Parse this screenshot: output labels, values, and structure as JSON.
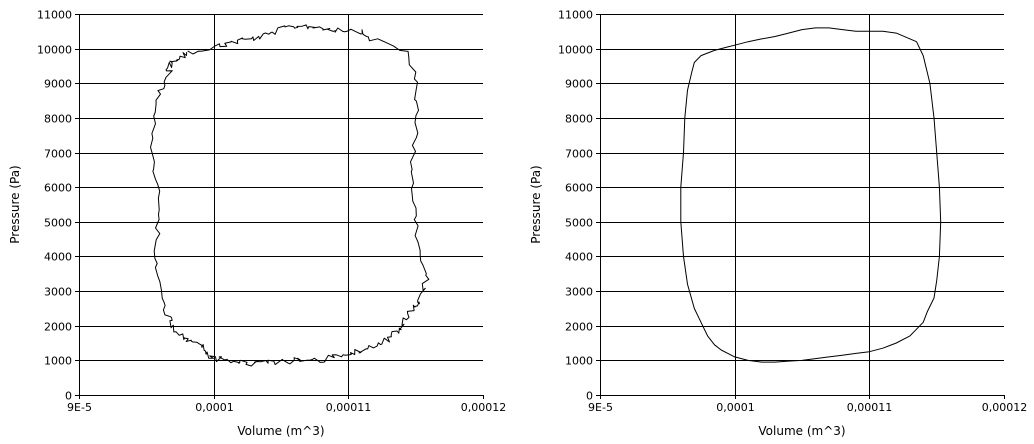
{
  "chart_data": [
    {
      "type": "line",
      "title": "",
      "xlabel": "Volume (m^3)",
      "ylabel": "Pressure (Pa)",
      "xlim": [
        9e-05,
        0.00012
      ],
      "ylim": [
        0,
        11000
      ],
      "x_ticks": [
        9e-05,
        0.0001,
        0.00011,
        0.00012
      ],
      "x_tick_labels": [
        "9E-5",
        "0,0001",
        "0,00011",
        "0,00012"
      ],
      "y_ticks": [
        0,
        1000,
        2000,
        3000,
        4000,
        5000,
        6000,
        7000,
        8000,
        9000,
        10000,
        11000
      ],
      "y_tick_labels": [
        "0",
        "1000",
        "2000",
        "3000",
        "4000",
        "5000",
        "6000",
        "7000",
        "8000",
        "9000",
        "10000",
        "11000"
      ],
      "grid": true,
      "legend": "none",
      "noisy": true,
      "series": [
        {
          "line_color": "#000000",
          "x": [
            9.8e-05,
            0.0001,
            0.000101,
            0.000102,
            0.000103,
            0.000104,
            0.000105,
            0.000106,
            0.000107,
            0.000108,
            0.000109,
            0.00011,
            0.000111,
            0.0001115,
            0.0001145,
            0.000115,
            0.0001152,
            0.0001148,
            0.0001148,
            0.000115,
            0.0001153,
            0.0001158,
            0.0001153,
            0.000115,
            0.0001145,
            0.000114,
            0.0001135,
            0.000113,
            0.000112,
            0.000111,
            0.00011,
            0.000109,
            0.000108,
            0.000107,
            0.000106,
            0.000105,
            0.000104,
            0.000103,
            0.000102,
            0.000101,
            0.0001,
            9.95e-05,
            9.9e-05,
            9.8e-05,
            9.75e-05,
            9.7e-05,
            9.65e-05,
            9.6e-05,
            9.55e-05,
            9.6e-05,
            9.58e-05,
            9.55e-05,
            9.55e-05,
            9.6e-05,
            9.68e-05,
            9.65e-05,
            9.7e-05,
            9.75e-05,
            9.8e-05
          ],
          "y": [
            9900,
            10050,
            10150,
            10250,
            10300,
            10400,
            10550,
            10650,
            10650,
            10600,
            10550,
            10550,
            10500,
            10300,
            9900,
            9000,
            8000,
            7000,
            6000,
            5000,
            4000,
            3300,
            2800,
            2600,
            2400,
            2000,
            1800,
            1600,
            1400,
            1300,
            1200,
            1100,
            1000,
            1000,
            1000,
            950,
            930,
            900,
            950,
            1000,
            1050,
            1200,
            1500,
            1600,
            1700,
            2000,
            2300,
            3000,
            4000,
            5000,
            6000,
            7000,
            8000,
            8800,
            9300,
            9500,
            9600,
            9700,
            9900
          ]
        }
      ]
    },
    {
      "type": "line",
      "title": "",
      "xlabel": "Volume (m^3)",
      "ylabel": "Pressure (Pa)",
      "xlim": [
        9e-05,
        0.00012
      ],
      "ylim": [
        0,
        11000
      ],
      "x_ticks": [
        9e-05,
        0.0001,
        0.00011,
        0.00012
      ],
      "x_tick_labels": [
        "9E-5",
        "0,0001",
        "0,00011",
        "0,00012"
      ],
      "y_ticks": [
        0,
        1000,
        2000,
        3000,
        4000,
        5000,
        6000,
        7000,
        8000,
        9000,
        10000,
        11000
      ],
      "y_tick_labels": [
        "0",
        "1000",
        "2000",
        "3000",
        "4000",
        "5000",
        "6000",
        "7000",
        "8000",
        "9000",
        "10000",
        "11000"
      ],
      "grid": true,
      "legend": "none",
      "noisy": false,
      "series": [
        {
          "line_color": "#000000",
          "x": [
            9.95e-05,
            0.0001,
            0.000101,
            0.000102,
            0.000103,
            0.000104,
            0.000105,
            0.000106,
            0.000107,
            0.000108,
            0.000109,
            0.00011,
            0.000111,
            0.000112,
            0.0001135,
            0.000114,
            0.0001145,
            0.0001148,
            0.000115,
            0.0001152,
            0.0001153,
            0.0001152,
            0.000115,
            0.0001148,
            0.0001143,
            0.000114,
            0.0001135,
            0.000113,
            0.000112,
            0.000111,
            0.00011,
            0.000109,
            0.000108,
            0.000107,
            0.000106,
            0.000105,
            0.000104,
            0.000103,
            0.000102,
            0.000101,
            0.0001,
            9.95e-05,
            9.9e-05,
            9.85e-05,
            9.8e-05,
            9.75e-05,
            9.7e-05,
            9.65e-05,
            9.62e-05,
            9.6e-05,
            9.6e-05,
            9.62e-05,
            9.63e-05,
            9.65e-05,
            9.68e-05,
            9.7e-05,
            9.75e-05,
            9.85e-05,
            9.95e-05
          ],
          "y": [
            10050,
            10100,
            10200,
            10280,
            10350,
            10450,
            10550,
            10600,
            10600,
            10550,
            10500,
            10500,
            10500,
            10450,
            10200,
            9800,
            9000,
            8000,
            7000,
            6000,
            5000,
            4000,
            3300,
            2800,
            2400,
            2100,
            1900,
            1700,
            1500,
            1350,
            1250,
            1200,
            1150,
            1100,
            1050,
            1000,
            980,
            950,
            950,
            1000,
            1100,
            1200,
            1300,
            1450,
            1700,
            2100,
            2500,
            3200,
            4000,
            5000,
            6000,
            7000,
            8000,
            8800,
            9300,
            9600,
            9800,
            9950,
            10050
          ]
        }
      ]
    }
  ]
}
